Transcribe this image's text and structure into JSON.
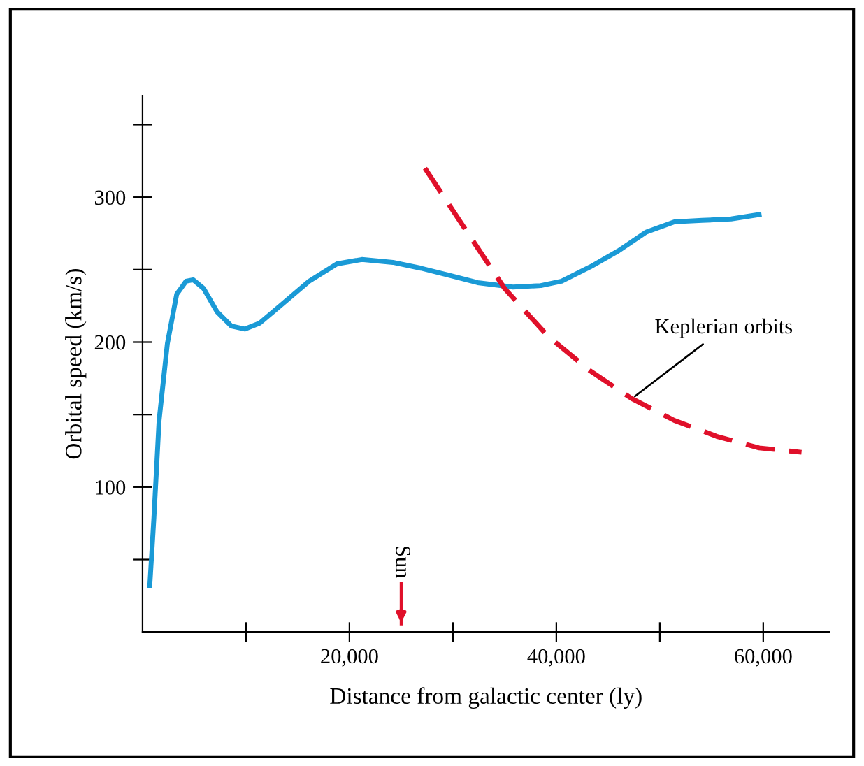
{
  "chart_data": {
    "type": "line",
    "xlabel": "Distance from galactic center (ly)",
    "ylabel": "Orbital speed (km/s)",
    "xlim": [
      0,
      66400
    ],
    "ylim": [
      0,
      370
    ],
    "xticks": [
      {
        "value": 10000,
        "label": null
      },
      {
        "value": 20000,
        "label": "20,000"
      },
      {
        "value": 30000,
        "label": null
      },
      {
        "value": 40000,
        "label": "40,000"
      },
      {
        "value": 50000,
        "label": null
      },
      {
        "value": 60000,
        "label": "60,000"
      }
    ],
    "yticks": [
      {
        "value": 50,
        "label": null
      },
      100,
      {
        "value": 150,
        "label": null
      },
      200,
      {
        "value": 250,
        "label": null
      },
      300,
      {
        "value": 350,
        "label": null
      }
    ],
    "grid": false,
    "legend": false,
    "series": [
      {
        "color": "#1a9ad6",
        "line_style": "solid",
        "x": [
          700,
          1100,
          1600,
          2400,
          3300,
          4200,
          4900,
          5900,
          7200,
          8600,
          9900,
          11300,
          13300,
          16100,
          18800,
          21200,
          24200,
          26900,
          29700,
          32400,
          35800,
          38500,
          40500,
          43300,
          46000,
          48700,
          51400,
          54100,
          56900,
          59600
        ],
        "values": [
          32,
          79,
          146,
          199,
          233,
          242,
          243,
          237,
          221,
          211,
          209,
          213,
          225,
          242,
          254,
          257,
          255,
          251,
          246,
          241,
          238,
          239,
          242,
          252,
          263,
          276,
          283,
          284,
          285,
          288
        ]
      },
      {
        "name": "Keplerian orbits",
        "color": "#e0102a",
        "line_style": "dashed",
        "x": [
          27300,
          31000,
          35000,
          39200,
          43300,
          47300,
          51400,
          55500,
          59600,
          63700
        ],
        "values": [
          320,
          280,
          237,
          204,
          180,
          161,
          146,
          135,
          127,
          124
        ]
      }
    ],
    "ref_lines": [
      {
        "axis": "x",
        "value": 25000,
        "label": "Sun",
        "color": "#e0102a"
      }
    ]
  }
}
